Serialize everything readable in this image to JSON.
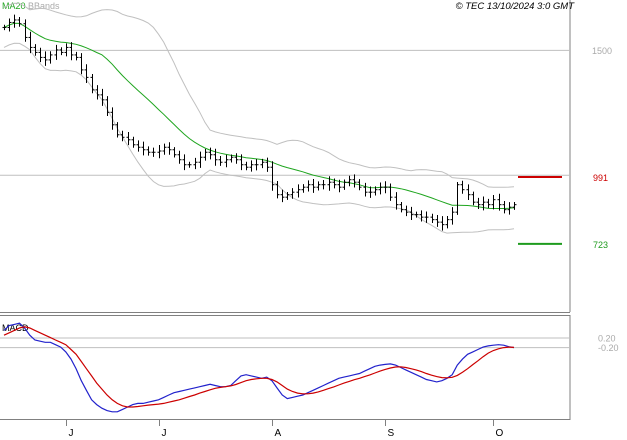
{
  "header": {
    "ma_label": "MA20",
    "bb_label": "BBands",
    "copyright": "© TEC 13/10/2024 3:0 GMT"
  },
  "colors": {
    "price": "#000000",
    "ma": "#1fa51f",
    "bands": "#c0c0c0",
    "resistance": "#cc0000",
    "support": "#1e9b1e",
    "macd": "#2222cc",
    "signal": "#cc0000",
    "grid": "#bfbfbf",
    "axis": "#808080",
    "label": "#aaaaaa"
  },
  "chart_data": [
    {
      "type": "ohlc",
      "ylim": [
        450,
        1700
      ],
      "ytick_labels": [
        {
          "value": 1500,
          "label": "1500"
        }
      ],
      "gridlines": [
        1500,
        1000
      ],
      "x_labels": [
        {
          "index": 12,
          "label": "J"
        },
        {
          "index": 30,
          "label": "J"
        },
        {
          "index": 52,
          "label": "A"
        },
        {
          "index": 74,
          "label": "S"
        },
        {
          "index": 95,
          "label": "O"
        }
      ],
      "levels": [
        {
          "name": "resistance",
          "value": 991,
          "label": "991"
        },
        {
          "name": "support",
          "value": 723,
          "label": "723"
        }
      ],
      "closes": [
        1590,
        1610,
        1620,
        1605,
        1550,
        1510,
        1490,
        1470,
        1460,
        1480,
        1500,
        1490,
        1510,
        1480,
        1470,
        1420,
        1390,
        1340,
        1320,
        1300,
        1250,
        1200,
        1160,
        1150,
        1140,
        1120,
        1110,
        1100,
        1090,
        1090,
        1095,
        1110,
        1100,
        1080,
        1060,
        1040,
        1040,
        1050,
        1070,
        1090,
        1080,
        1060,
        1050,
        1060,
        1070,
        1060,
        1040,
        1030,
        1040,
        1040,
        1050,
        1030,
        960,
        920,
        910,
        920,
        930,
        940,
        950,
        960,
        950,
        960,
        960,
        970,
        960,
        950,
        970,
        980,
        970,
        950,
        930,
        930,
        940,
        950,
        950,
        910,
        880,
        860,
        850,
        840,
        840,
        830,
        830,
        820,
        810,
        800,
        820,
        850,
        960,
        940,
        920,
        890,
        880,
        890,
        880,
        900,
        880,
        860,
        870,
        880
      ],
      "overlays": [
        "MA20",
        "Bollinger Bands"
      ]
    },
    {
      "type": "line",
      "title": "MACD",
      "ylim": [
        -3.2,
        1.1
      ],
      "ytick_labels": [
        {
          "value": 0.2,
          "label": "0.20"
        },
        {
          "value": -0.2,
          "label": "-0.20"
        }
      ],
      "series": [
        {
          "name": "MACD",
          "values": [
            0.5,
            0.7,
            0.75,
            0.8,
            0.6,
            0.3,
            0.1,
            0.05,
            0.0,
            0.0,
            -0.1,
            -0.2,
            -0.4,
            -0.7,
            -1.1,
            -1.6,
            -2.0,
            -2.4,
            -2.6,
            -2.75,
            -2.85,
            -2.9,
            -2.9,
            -2.8,
            -2.7,
            -2.6,
            -2.55,
            -2.55,
            -2.5,
            -2.45,
            -2.4,
            -2.3,
            -2.2,
            -2.1,
            -2.05,
            -2.0,
            -1.95,
            -1.9,
            -1.85,
            -1.8,
            -1.75,
            -1.8,
            -1.85,
            -1.85,
            -1.8,
            -1.6,
            -1.4,
            -1.35,
            -1.4,
            -1.45,
            -1.5,
            -1.45,
            -1.6,
            -1.9,
            -2.2,
            -2.35,
            -2.3,
            -2.25,
            -2.2,
            -2.1,
            -2.0,
            -1.9,
            -1.8,
            -1.7,
            -1.6,
            -1.5,
            -1.45,
            -1.4,
            -1.35,
            -1.3,
            -1.2,
            -1.1,
            -1.0,
            -0.95,
            -0.92,
            -0.9,
            -0.95,
            -1.05,
            -1.15,
            -1.25,
            -1.35,
            -1.45,
            -1.55,
            -1.6,
            -1.65,
            -1.6,
            -1.5,
            -1.35,
            -0.95,
            -0.7,
            -0.5,
            -0.4,
            -0.3,
            -0.2,
            -0.15,
            -0.12,
            -0.1,
            -0.12,
            -0.18,
            -0.22
          ]
        },
        {
          "name": "Signal",
          "values": [
            0.3,
            0.4,
            0.5,
            0.6,
            0.65,
            0.6,
            0.5,
            0.4,
            0.3,
            0.2,
            0.1,
            0.0,
            -0.1,
            -0.3,
            -0.5,
            -0.8,
            -1.1,
            -1.4,
            -1.7,
            -1.95,
            -2.2,
            -2.4,
            -2.55,
            -2.65,
            -2.7,
            -2.7,
            -2.68,
            -2.65,
            -2.62,
            -2.6,
            -2.58,
            -2.55,
            -2.5,
            -2.45,
            -2.4,
            -2.33,
            -2.26,
            -2.2,
            -2.12,
            -2.05,
            -1.98,
            -1.92,
            -1.88,
            -1.85,
            -1.82,
            -1.76,
            -1.68,
            -1.6,
            -1.55,
            -1.52,
            -1.5,
            -1.5,
            -1.55,
            -1.65,
            -1.8,
            -1.95,
            -2.05,
            -2.12,
            -2.15,
            -2.15,
            -2.12,
            -2.07,
            -2.0,
            -1.93,
            -1.86,
            -1.78,
            -1.7,
            -1.63,
            -1.56,
            -1.5,
            -1.43,
            -1.36,
            -1.28,
            -1.2,
            -1.13,
            -1.07,
            -1.03,
            -1.02,
            -1.05,
            -1.1,
            -1.15,
            -1.22,
            -1.3,
            -1.37,
            -1.43,
            -1.47,
            -1.48,
            -1.46,
            -1.38,
            -1.25,
            -1.1,
            -0.93,
            -0.77,
            -0.6,
            -0.45,
            -0.34,
            -0.27,
            -0.22,
            -0.2,
            -0.21
          ]
        }
      ]
    }
  ]
}
